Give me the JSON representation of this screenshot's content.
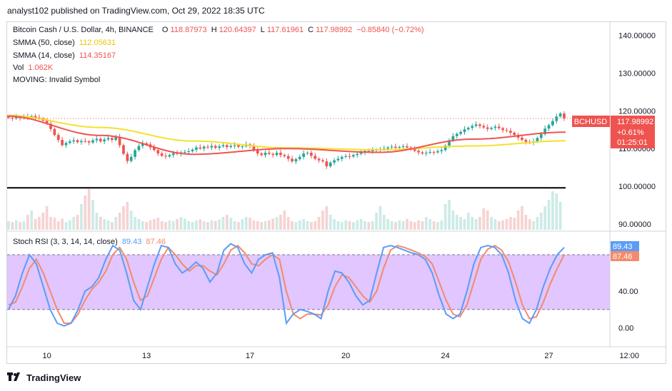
{
  "header": {
    "published": "analyst102 published on TradingView.com, Oct 29, 2022 18:35 UTC"
  },
  "legend": {
    "symbol": "Bitcoin Cash / U.S. Dollar, 4h, BINANCE",
    "o_label": "O",
    "o": "118.87973",
    "h_label": "H",
    "h": "120.64397",
    "l_label": "L",
    "l": "117.61961",
    "c_label": "C",
    "c": "117.98992",
    "change": "−0.85840 (−0.72%)",
    "smma50_label": "SMMA (50, close)",
    "smma50_value": "112.05631",
    "smma14_label": "SMMA (14, close)",
    "smma14_value": "114.35167",
    "vol_label": "Vol",
    "vol_value": "1.062K",
    "moving_label": "MOVING: Invalid Symbol",
    "stoch_label": "Stoch RSI (3, 3, 14, 14, close)",
    "stoch_k": "89.43",
    "stoch_d": "87.46"
  },
  "price_badge": {
    "ticker": "BCHUSD",
    "price": "117.98992",
    "change": "+0.61%",
    "countdown": "01:25:01"
  },
  "footer": {
    "brand": "TradingView"
  },
  "colors": {
    "up": "#26a69a",
    "down": "#ef5350",
    "smma50": "#f5e02d",
    "smma14": "#ef5350",
    "stoch_k": "#5b9cf6",
    "stoch_d": "#f28b6b",
    "stoch_band": "#e1c6ff",
    "support": "#000000"
  },
  "chart_data": [
    {
      "type": "candlestick",
      "title": "Bitcoin Cash / U.S. Dollar, 4h, BINANCE",
      "y_ticks": [
        140,
        130,
        120,
        110,
        100,
        90
      ],
      "y_tick_labels": [
        "140.00000",
        "130.00000",
        "120.00000",
        "110.00000",
        "100.00000",
        "90.00000"
      ],
      "ylim": [
        88.5,
        143.5
      ],
      "x_tick_labels": [
        "10",
        "13",
        "17",
        "20",
        "24",
        "27",
        "12:00"
      ],
      "x_tick_index": [
        10,
        36,
        63,
        88,
        114,
        141,
        162
      ],
      "support_level": 99.6,
      "series": [
        {
          "name": "Close",
          "values": [
            118.2,
            118.0,
            118.4,
            118.1,
            118.5,
            118.3,
            118.6,
            118.2,
            118.0,
            117.4,
            116.6,
            115.2,
            113.6,
            112.3,
            110.9,
            111.5,
            111.9,
            112.2,
            111.7,
            112.0,
            111.9,
            111.6,
            112.2,
            112.6,
            111.9,
            112.4,
            112.8,
            112.3,
            113.1,
            110.9,
            108.6,
            106.7,
            107.8,
            109.6,
            110.7,
            111.4,
            111.1,
            110.3,
            109.6,
            108.7,
            108.1,
            107.9,
            108.3,
            108.8,
            108.6,
            109.0,
            109.1,
            109.3,
            109.7,
            110.3,
            110.0,
            110.5,
            110.3,
            110.7,
            110.2,
            110.6,
            110.9,
            110.4,
            110.7,
            110.9,
            110.5,
            110.6,
            111.1,
            110.8,
            109.5,
            108.7,
            108.3,
            108.9,
            108.6,
            108.3,
            108.9,
            108.3,
            108.0,
            107.3,
            106.6,
            107.2,
            107.8,
            108.7,
            108.9,
            108.1,
            107.3,
            106.9,
            106.6,
            105.3,
            106.3,
            106.9,
            107.3,
            107.8,
            108.0,
            107.9,
            108.3,
            108.6,
            109.0,
            109.4,
            109.3,
            109.6,
            109.7,
            109.8,
            110.0,
            110.3,
            110.5,
            110.2,
            110.4,
            110.6,
            110.3,
            110.1,
            109.4,
            109.0,
            108.7,
            108.9,
            109.1,
            109.0,
            109.3,
            109.6,
            110.8,
            112.1,
            113.3,
            113.9,
            114.4,
            115.1,
            115.5,
            116.0,
            116.4,
            116.0,
            115.6,
            115.2,
            115.5,
            115.8,
            115.4,
            114.9,
            114.7,
            114.2,
            113.6,
            112.9,
            112.3,
            111.8,
            111.6,
            111.9,
            112.8,
            113.8,
            115.3,
            116.2,
            117.3,
            118.5,
            119.3,
            117.99
          ]
        },
        {
          "name": "SMMA (50, close)",
          "values": [
            118.8,
            115.6,
            112.0,
            110.2,
            109.7,
            110.7,
            112.05631
          ]
        },
        {
          "name": "SMMA (14, close)",
          "values": [
            118.6,
            113.5,
            108.5,
            110.0,
            109.0,
            112.5,
            114.35167
          ]
        },
        {
          "name": "Vol",
          "values": [
            0.2,
            0.18,
            0.22,
            0.18,
            0.2,
            0.35,
            0.45,
            0.25,
            0.3,
            0.4,
            0.55,
            0.3,
            0.28,
            0.2,
            0.26,
            0.18,
            0.22,
            0.3,
            0.35,
            0.6,
            0.8,
            0.95,
            0.7,
            0.4,
            0.3,
            0.25,
            0.22,
            0.18,
            0.3,
            0.4,
            0.55,
            0.65,
            0.45,
            0.3,
            0.25,
            0.2,
            0.18,
            0.22,
            0.25,
            0.28,
            0.2,
            0.18,
            0.22,
            0.2,
            0.25,
            0.3,
            0.26,
            0.2,
            0.18,
            0.22,
            0.24,
            0.2,
            0.18,
            0.22,
            0.2,
            0.24,
            0.3,
            0.35,
            0.28,
            0.2,
            0.18,
            0.25,
            0.3,
            0.28,
            0.22,
            0.2,
            0.18,
            0.2,
            0.22,
            0.26,
            0.3,
            0.35,
            0.45,
            0.3,
            0.2,
            0.18,
            0.22,
            0.25,
            0.2,
            0.18,
            0.2,
            0.3,
            0.45,
            0.55,
            0.35,
            0.25,
            0.2,
            0.18,
            0.22,
            0.2,
            0.18,
            0.22,
            0.25,
            0.2,
            0.18,
            0.2,
            0.4,
            0.55,
            0.35,
            0.25,
            0.2,
            0.18,
            0.22,
            0.2,
            0.25,
            0.2,
            0.18,
            0.22,
            0.2,
            0.3,
            0.25,
            0.2,
            0.18,
            0.22,
            0.6,
            0.7,
            0.45,
            0.35,
            0.3,
            0.25,
            0.4,
            0.3,
            0.25,
            0.3,
            0.5,
            0.45,
            0.3,
            0.25,
            0.2,
            0.22,
            0.25,
            0.3,
            0.28,
            0.45,
            0.55,
            0.35,
            0.25,
            0.2,
            0.3,
            0.4,
            0.55,
            0.7,
            0.9,
            0.85,
            0.65
          ]
        }
      ]
    },
    {
      "type": "line",
      "title": "Stoch RSI (3, 3, 14, 14, close)",
      "y_ticks": [
        80,
        40,
        0
      ],
      "y_tick_labels": [
        "80.00",
        "40.00",
        "0.00"
      ],
      "ylim": [
        -20,
        105
      ],
      "band": [
        20,
        80
      ],
      "series": [
        {
          "name": "K",
          "values": [
            20,
            35,
            60,
            80,
            70,
            45,
            20,
            5,
            2,
            5,
            20,
            40,
            45,
            55,
            75,
            90,
            85,
            60,
            30,
            20,
            45,
            70,
            90,
            88,
            70,
            60,
            65,
            72,
            65,
            50,
            60,
            85,
            92,
            88,
            70,
            60,
            75,
            80,
            82,
            55,
            5,
            15,
            20,
            18,
            15,
            10,
            40,
            62,
            60,
            50,
            35,
            25,
            30,
            60,
            88,
            90,
            88,
            85,
            82,
            80,
            75,
            60,
            35,
            15,
            10,
            15,
            40,
            70,
            88,
            90,
            88,
            80,
            60,
            30,
            10,
            5,
            20,
            45,
            65,
            80,
            88
          ]
        },
        {
          "name": "D",
          "values": [
            25,
            28,
            45,
            65,
            75,
            60,
            40,
            20,
            5,
            5,
            15,
            30,
            42,
            50,
            62,
            80,
            88,
            75,
            50,
            30,
            35,
            55,
            75,
            88,
            80,
            70,
            62,
            68,
            68,
            62,
            58,
            70,
            85,
            90,
            82,
            70,
            68,
            75,
            80,
            75,
            40,
            15,
            10,
            15,
            15,
            14,
            25,
            45,
            58,
            55,
            45,
            35,
            28,
            40,
            65,
            85,
            90,
            88,
            85,
            82,
            78,
            70,
            50,
            30,
            15,
            12,
            25,
            50,
            75,
            86,
            90,
            85,
            72,
            50,
            25,
            10,
            12,
            28,
            48,
            65,
            80
          ]
        }
      ]
    }
  ]
}
